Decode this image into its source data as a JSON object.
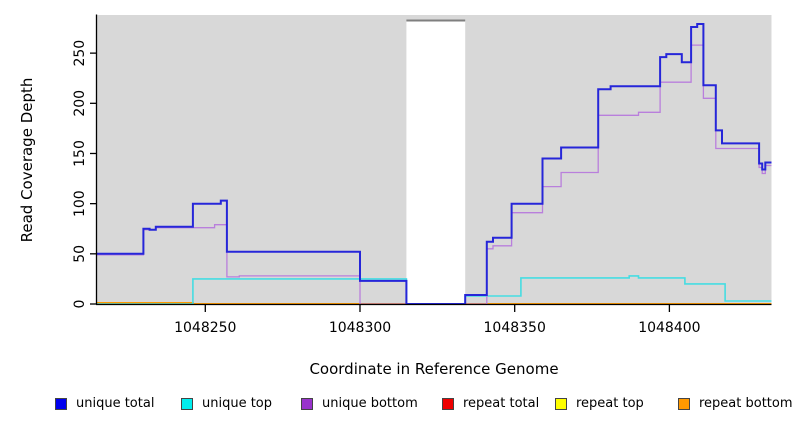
{
  "figure": {
    "background": "#ffffff"
  },
  "chart_data": {
    "type": "line",
    "subtype": "step-coverage-plot",
    "title": "",
    "xlabel": "Coordinate in Reference Genome",
    "ylabel": "Read Coverage Depth",
    "x_ticks": [
      1048250,
      1048300,
      1048350,
      1048400
    ],
    "y_ticks": [
      0,
      50,
      100,
      150,
      200,
      250
    ],
    "xlim": [
      1048215,
      1048433
    ],
    "ylim": [
      0,
      288
    ],
    "grid": "off",
    "legend_position": "bottom",
    "panel_bg": "#d8d8d8",
    "axis_color": "#000000",
    "gap_region": {
      "x_start": 1048315,
      "x_end": 1048334,
      "fill": "#ffffff",
      "top_border": "#7f7f7f"
    },
    "draw_order": [
      3,
      4,
      5,
      1,
      2,
      0
    ],
    "series": [
      {
        "name": "unique total",
        "line_color": "#2626d9",
        "legend_color": "#0000ee",
        "line_width": 2,
        "points": [
          [
            1048215,
            50
          ],
          [
            1048230,
            75
          ],
          [
            1048232,
            74
          ],
          [
            1048234,
            77
          ],
          [
            1048246,
            100
          ],
          [
            1048255,
            103
          ],
          [
            1048257,
            52
          ],
          [
            1048300,
            23
          ],
          [
            1048315,
            0
          ],
          [
            1048334,
            9
          ],
          [
            1048341,
            62
          ],
          [
            1048343,
            66
          ],
          [
            1048349,
            100
          ],
          [
            1048359,
            145
          ],
          [
            1048365,
            156
          ],
          [
            1048377,
            214
          ],
          [
            1048381,
            217
          ],
          [
            1048397,
            246
          ],
          [
            1048399,
            249
          ],
          [
            1048404,
            241
          ],
          [
            1048407,
            276
          ],
          [
            1048409,
            279
          ],
          [
            1048411,
            218
          ],
          [
            1048415,
            173
          ],
          [
            1048417,
            160
          ],
          [
            1048429,
            140
          ],
          [
            1048430,
            134
          ],
          [
            1048431,
            141
          ]
        ]
      },
      {
        "name": "unique top",
        "line_color": "#45dde2",
        "legend_color": "#00eeee",
        "line_width": 1.6,
        "points": [
          [
            1048215,
            0
          ],
          [
            1048246,
            25
          ],
          [
            1048315,
            0
          ],
          [
            1048334,
            8
          ],
          [
            1048352,
            26
          ],
          [
            1048387,
            28
          ],
          [
            1048390,
            26
          ],
          [
            1048405,
            20
          ],
          [
            1048418,
            3
          ]
        ]
      },
      {
        "name": "unique bottom",
        "line_color": "#b97fdc",
        "legend_color": "#9933cc",
        "line_width": 1.3,
        "points": [
          [
            1048215,
            49
          ],
          [
            1048230,
            74
          ],
          [
            1048234,
            76
          ],
          [
            1048253,
            79
          ],
          [
            1048257,
            27
          ],
          [
            1048261,
            28
          ],
          [
            1048300,
            0
          ],
          [
            1048341,
            55
          ],
          [
            1048343,
            58
          ],
          [
            1048349,
            91
          ],
          [
            1048359,
            117
          ],
          [
            1048365,
            131
          ],
          [
            1048377,
            188
          ],
          [
            1048390,
            191
          ],
          [
            1048397,
            221
          ],
          [
            1048407,
            258
          ],
          [
            1048411,
            205
          ],
          [
            1048415,
            155
          ],
          [
            1048429,
            136
          ],
          [
            1048430,
            130
          ],
          [
            1048431,
            138
          ]
        ]
      },
      {
        "name": "repeat total",
        "line_color": "#dd0000",
        "legend_color": "#ee0000",
        "line_width": 1.5,
        "points": [
          [
            1048215,
            0
          ]
        ]
      },
      {
        "name": "repeat top",
        "line_color": "#ffff00",
        "legend_color": "#ffff00",
        "line_width": 1.5,
        "points": [
          [
            1048215,
            0
          ]
        ]
      },
      {
        "name": "repeat bottom",
        "line_color": "#ff9900",
        "legend_color": "#ff9900",
        "line_width": 2,
        "points": [
          [
            1048215,
            1
          ],
          [
            1048246,
            0
          ]
        ]
      }
    ]
  }
}
